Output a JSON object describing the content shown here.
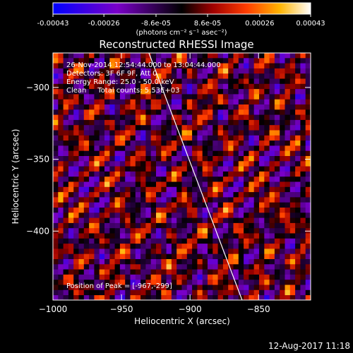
{
  "colorbar": {
    "ticks": [
      "-0.00043",
      "-0.00026",
      "-8.6e-05",
      "8.6e-05",
      "0.00026",
      "0.00043"
    ],
    "tick_values": [
      -0.00043,
      -0.00026,
      -8.6e-05,
      8.6e-05,
      0.00026,
      0.00043
    ],
    "range": [
      -0.00043,
      0.00043
    ],
    "units_label": "(photons cm⁻² s⁻¹ asec⁻²)",
    "colors": [
      "#0000ff",
      "#7a00c8",
      "#000000",
      "#a00000",
      "#ff3c00",
      "#ffb400",
      "#ffffff"
    ]
  },
  "chart_data": {
    "type": "heatmap",
    "title": "Reconstructed RHESSI Image",
    "xlabel": "Heliocentric X (arcsec)",
    "ylabel": "Heliocentric Y (arcsec)",
    "xlim": [
      -1000,
      -812
    ],
    "ylim": [
      -448,
      -276
    ],
    "x_ticks": [
      -1000,
      -950,
      -900,
      -850
    ],
    "x_tick_labels": [
      "−1000",
      "−950",
      "−900",
      "−850"
    ],
    "y_ticks": [
      -300,
      -350,
      -400
    ],
    "y_tick_labels": [
      "−300",
      "−350",
      "−400"
    ],
    "limb_line": [
      [
        -930,
        -276
      ],
      [
        -862,
        -448
      ]
    ],
    "peak_position": [
      -967,
      -299
    ],
    "info_lines": [
      "26-Nov-2014 12:54:44.000 to 13:04:44.000",
      "Detectors: 3F 6F 9F, Att 0",
      "Energy Range: 25.0 - 50.0 keV",
      "Clean     Total counts: 5.53E+03"
    ],
    "peak_label": "Position of Peak = [-967,-299]",
    "grid": false
  },
  "footer": {
    "timestamp": "12-Aug-2017 11:18"
  }
}
